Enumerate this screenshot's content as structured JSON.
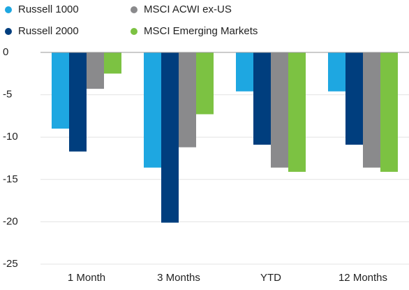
{
  "chart_data": {
    "type": "bar",
    "categories": [
      "1 Month",
      "3 Months",
      "YTD",
      "12 Months"
    ],
    "series": [
      {
        "name": "Russell 1000",
        "color": "#1ea7e1",
        "values": [
          -9.0,
          -13.6,
          -4.6,
          -4.6
        ]
      },
      {
        "name": "Russell 2000",
        "color": "#003e7e",
        "values": [
          -11.7,
          -20.1,
          -10.9,
          -10.9
        ]
      },
      {
        "name": "MSCI ACWI ex-US",
        "color": "#8a8a8c",
        "values": [
          -4.3,
          -11.2,
          -13.6,
          -13.6
        ]
      },
      {
        "name": "MSCI Emerging Markets",
        "color": "#7cc242",
        "values": [
          -2.5,
          -7.3,
          -14.1,
          -14.1
        ]
      }
    ],
    "ylim": [
      -25,
      0
    ],
    "yticks": [
      0,
      -5,
      -10,
      -15,
      -20,
      -25
    ],
    "grid": true
  }
}
